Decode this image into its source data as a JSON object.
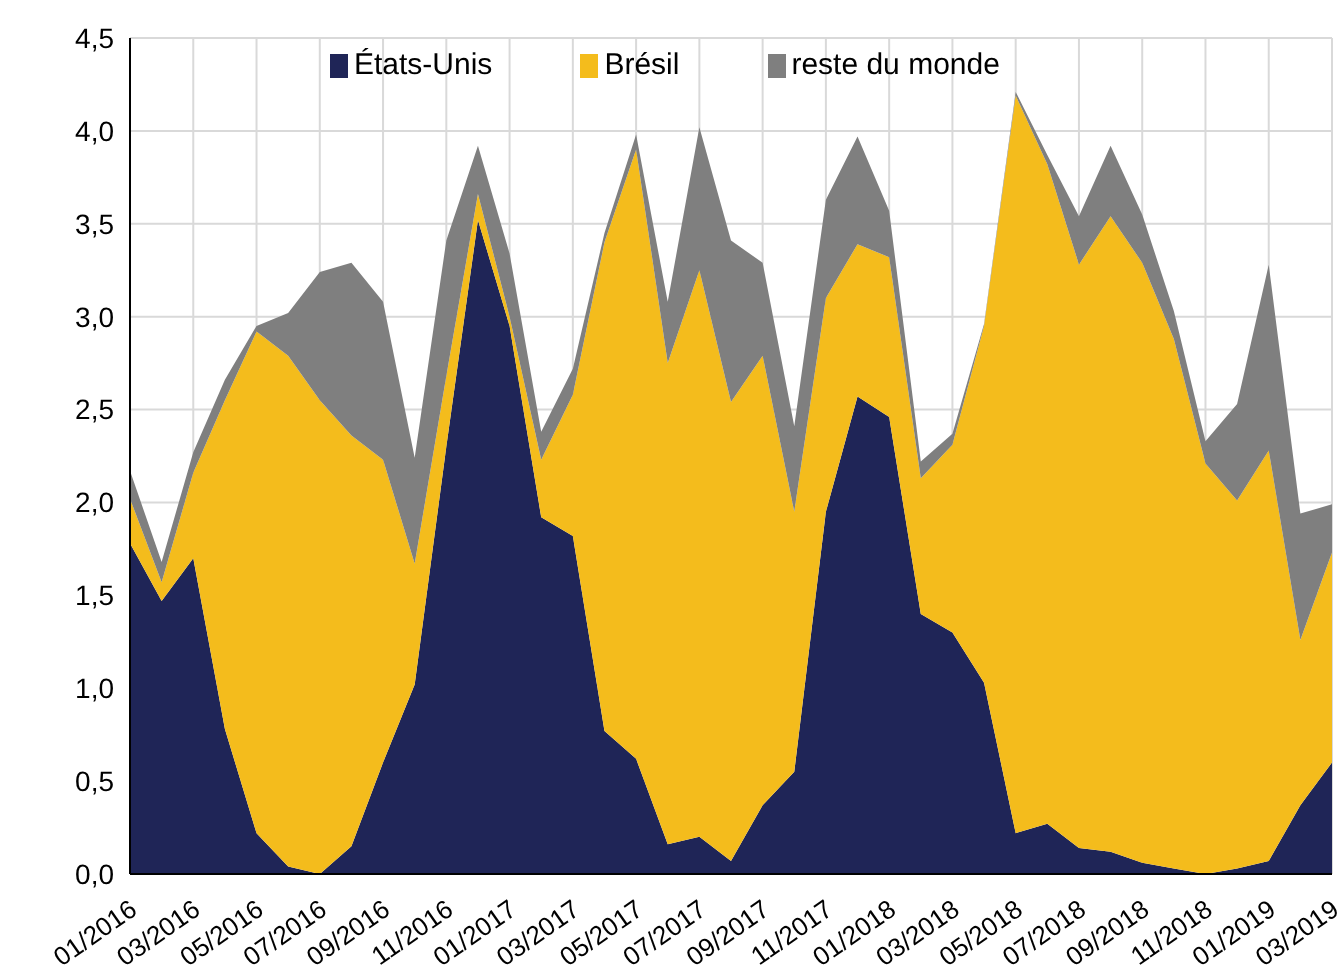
{
  "chart_data": {
    "type": "area",
    "stacked": true,
    "categories": [
      "01/2016",
      null,
      "03/2016",
      null,
      "05/2016",
      null,
      "07/2016",
      null,
      "09/2016",
      null,
      "11/2016",
      null,
      "01/2017",
      null,
      "03/2017",
      null,
      "05/2017",
      null,
      "07/2017",
      null,
      "09/2017",
      null,
      "11/2017",
      null,
      "01/2018",
      null,
      "03/2018",
      null,
      "05/2018",
      null,
      "07/2018",
      null,
      "09/2018",
      null,
      "11/2018",
      null,
      "01/2019",
      null,
      "03/2019"
    ],
    "series": [
      {
        "name": "États-Unis",
        "color": "#1f2557",
        "values": [
          1.78,
          1.47,
          1.7,
          0.78,
          0.22,
          0.04,
          0,
          0.15,
          0.6,
          1.02,
          2.3,
          3.52,
          2.95,
          1.92,
          1.82,
          0.77,
          0.62,
          0.16,
          0.2,
          0.07,
          0.37,
          0.55,
          1.95,
          2.57,
          2.46,
          1.4,
          1.3,
          1.03,
          0.22,
          0.27,
          0.14,
          0.12,
          0.06,
          0.03,
          0,
          0.03,
          0.07,
          0.37,
          0.6
        ]
      },
      {
        "name": "Brésil",
        "color": "#f4bc1c",
        "values": [
          0.24,
          0.1,
          0.46,
          1.77,
          2.7,
          2.75,
          2.55,
          2.21,
          1.63,
          0.65,
          0.38,
          0.14,
          0.05,
          0.31,
          0.76,
          2.63,
          3.28,
          2.59,
          3.05,
          2.47,
          2.42,
          1.4,
          1.15,
          0.82,
          0.86,
          0.73,
          1.01,
          1.92,
          3.97,
          3.55,
          3.14,
          3.42,
          3.23,
          2.85,
          2.21,
          1.98,
          2.21,
          0.89,
          1.13
        ]
      },
      {
        "name": "reste du monde",
        "color": "#7f7f7f",
        "values": [
          0.15,
          0.11,
          0.11,
          0.11,
          0.03,
          0.23,
          0.69,
          0.93,
          0.85,
          0.57,
          0.73,
          0.26,
          0.34,
          0.15,
          0.14,
          0.05,
          0.08,
          0.33,
          0.77,
          0.87,
          0.5,
          0.46,
          0.53,
          0.58,
          0.25,
          0.09,
          0.06,
          0.01,
          0.02,
          0.05,
          0.26,
          0.38,
          0.26,
          0.15,
          0.12,
          0.52,
          1.0,
          0.68,
          0.26
        ]
      }
    ],
    "ylim": [
      0,
      4.5
    ],
    "yticks": [
      {
        "value": 0,
        "label": "0,0"
      },
      {
        "value": 0.5,
        "label": "0,5"
      },
      {
        "value": 1,
        "label": "1,0"
      },
      {
        "value": 1.5,
        "label": "1,5"
      },
      {
        "value": 2,
        "label": "2,0"
      },
      {
        "value": 2.5,
        "label": "2,5"
      },
      {
        "value": 3,
        "label": "3,0"
      },
      {
        "value": 3.5,
        "label": "3,5"
      },
      {
        "value": 4,
        "label": "4,0"
      },
      {
        "value": 4.5,
        "label": "4,5"
      }
    ],
    "grid": true,
    "legend": "top"
  }
}
